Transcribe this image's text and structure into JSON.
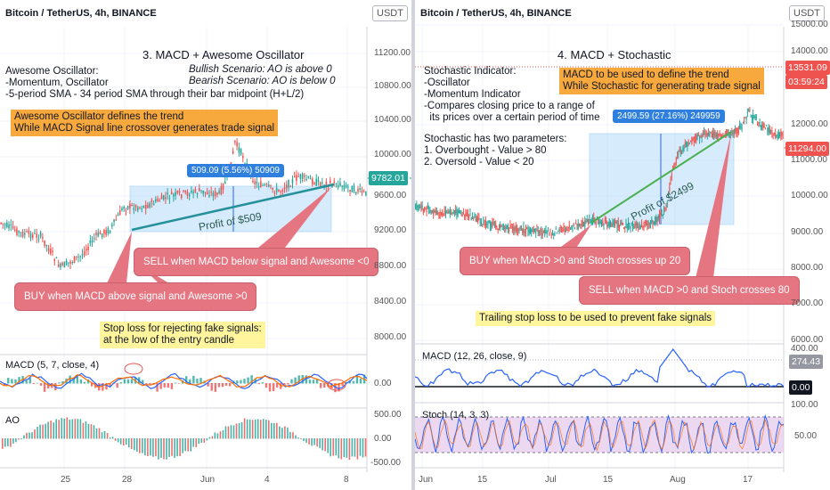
{
  "left": {
    "header": "Bitcoin / TetherUS, 4h, BINANCE",
    "currency": "USDT",
    "title": "3. MACD + Awesome Oscillator",
    "desc_lines": [
      "Awesome Oscillator:",
      "-Momentum, Oscillator",
      "-5-period SMA - 34 period SMA through their bar midpoint (H+L/2)"
    ],
    "bull": "Bullish Scenario: AO is above 0",
    "bear": "Bearish Scenario: AO is below 0",
    "orange_lines": [
      "Awesome Oscillator defines the trend",
      "While MACD Signal line crossover generates trade signal"
    ],
    "measure": "509.09 (5.56%) 50909",
    "profit": "Profit of $509",
    "sell": "SELL when MACD below signal and Awesome <0",
    "buy": "BUY when MACD above signal and Awesome >0",
    "yellow_lines": [
      "Stop loss for rejecting fake signals:",
      "at the low of the entry candle"
    ],
    "price_axis": [
      "11200.00",
      "10800.00",
      "10400.00",
      "10000.00",
      "9600.00",
      "9200.00",
      "8800.00",
      "8400.00",
      "8000.00"
    ],
    "last_price": "9782.01",
    "macd_label": "MACD (5, 7, close, 4)",
    "macd_axis": "0.00",
    "ao_label": "AO",
    "ao_axis": [
      "500.00",
      "0.00",
      "-500.00"
    ],
    "time_axis": [
      "25",
      "28",
      "Jun",
      "4",
      "8"
    ]
  },
  "right": {
    "header": "Bitcoin / TetherUS, 4h, BINANCE",
    "currency": "USDT",
    "title": "4. MACD + Stochastic",
    "desc_lines": [
      "Stochastic Indicator:",
      "-Oscillator",
      "-Momentum Indicator",
      "-Compares closing price to a range of",
      "  its prices over a certain period of time"
    ],
    "params_lines": [
      "Stochastic has two parameters:",
      "1. Overbought - Value > 80",
      "2. Oversold - Value < 20"
    ],
    "orange_lines": [
      "MACD to be used to define the trend",
      "While Stochastic for generating trade signal"
    ],
    "measure": "2499.59 (27.16%) 249959",
    "profit": "Profit of $2499",
    "buy": "BUY when MACD >0 and Stoch crosses up 20",
    "sell": "SELL when MACD >0 and Stoch crosses 80",
    "yellow": "Trailing stop loss to be used to prevent fake signals",
    "price_axis": [
      "15000.00",
      "14000.00",
      "12000.00",
      "11000.00",
      "10000.00",
      "9000.00",
      "8000.00",
      "7000.00",
      "6000.00"
    ],
    "tag_price": "13531.09",
    "tag_time": "03:59:24",
    "last_price": "11294.00",
    "macd_label": "MACD (12, 26, close, 9)",
    "macd_axis": [
      "400.00",
      "274.43",
      "0.00"
    ],
    "stoch_label": "Stoch (14, 3, 3)",
    "stoch_axis": [
      "100.00",
      "50.00"
    ],
    "time_axis": [
      "Jun",
      "15",
      "Jul",
      "15",
      "Aug",
      "17"
    ]
  },
  "colors": {
    "up": "#26a69a",
    "down": "#ef5350",
    "accent": "#2962ff",
    "box": "#bbdefb"
  },
  "chart_data": [
    {
      "type": "candlestick",
      "title": "3. MACD + Awesome Oscillator",
      "symbol": "Bitcoin / TetherUS, 4h, BINANCE",
      "x_ticks": [
        "25",
        "28",
        "Jun",
        "4",
        "8"
      ],
      "ylim": [
        7800,
        11500
      ],
      "y_ticks": [
        8000,
        8400,
        8800,
        9200,
        9600,
        10000,
        10400,
        10800,
        11200
      ],
      "last_price": 9782.01,
      "measure": {
        "change": 509.09,
        "percent": 5.56
      },
      "indicators": [
        "MACD (5, 7, close, 4)",
        "AO"
      ]
    },
    {
      "type": "candlestick",
      "title": "4. MACD + Stochastic",
      "symbol": "Bitcoin / TetherUS, 4h, BINANCE",
      "x_ticks": [
        "Jun",
        "15",
        "Jul",
        "15",
        "Aug",
        "17"
      ],
      "ylim": [
        5800,
        15500
      ],
      "y_ticks": [
        6000,
        7000,
        8000,
        9000,
        10000,
        11000,
        12000,
        14000,
        15000
      ],
      "last_price": 11294.0,
      "measure": {
        "change": 2499.59,
        "percent": 27.16
      },
      "indicators": [
        "MACD (12, 26, close, 9)",
        "Stoch (14, 3, 3)"
      ]
    }
  ]
}
